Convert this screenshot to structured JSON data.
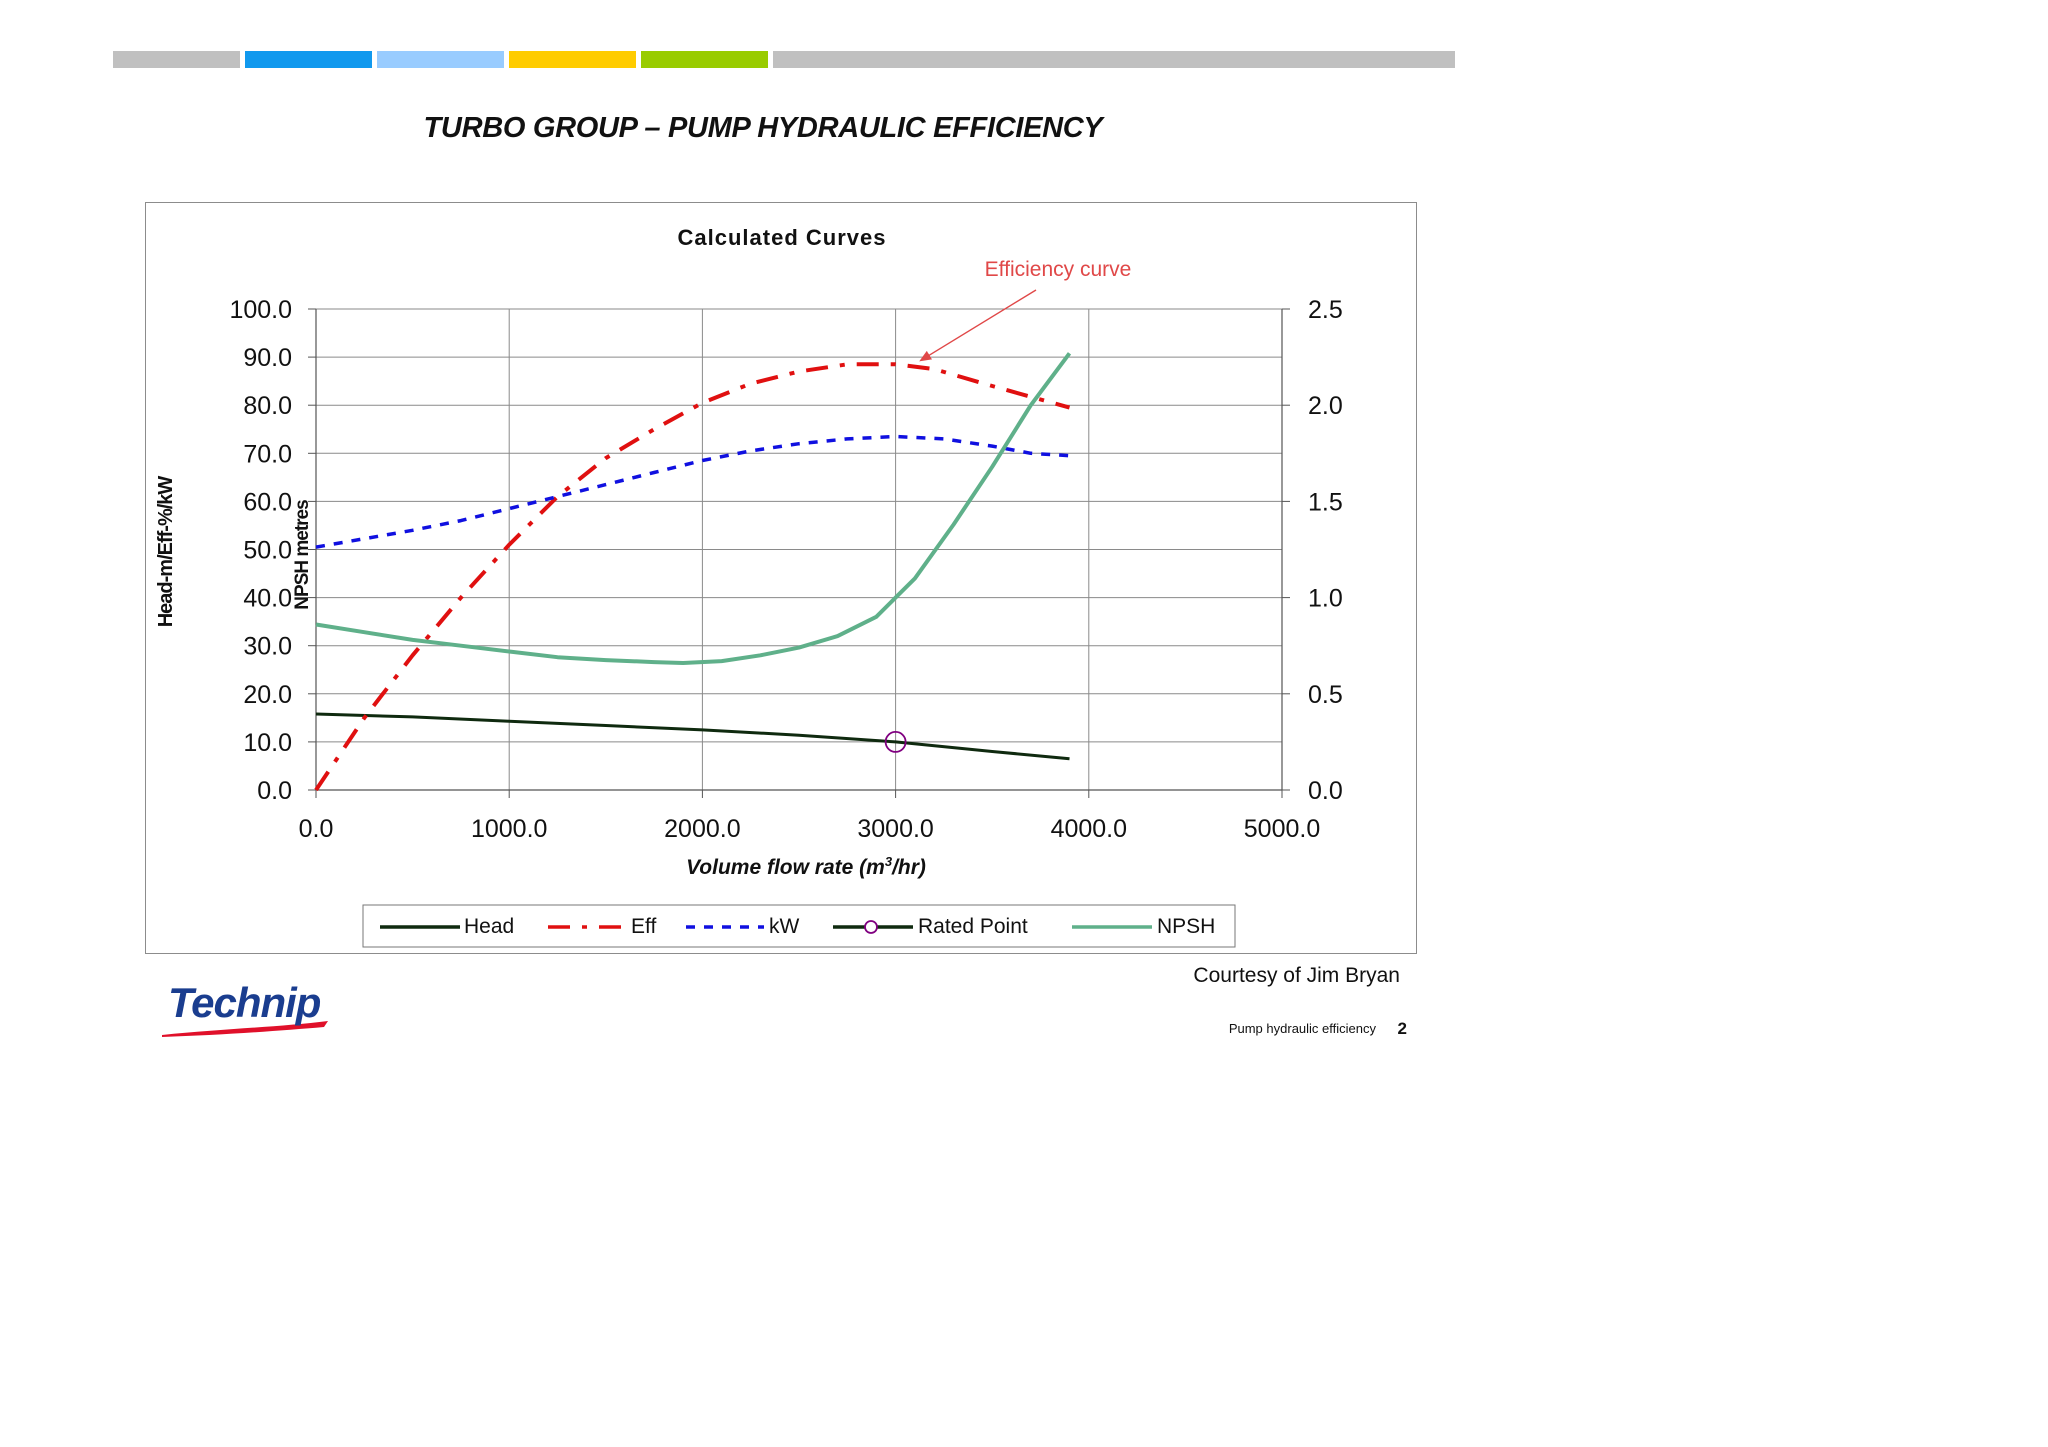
{
  "header": {
    "bars": [
      {
        "color": "#c0c0c0"
      },
      {
        "color": "#1199ee"
      },
      {
        "color": "#99ccff"
      },
      {
        "color": "#ffcc00"
      },
      {
        "color": "#99cc00"
      },
      {
        "color": "#c0c0c0"
      }
    ]
  },
  "slide": {
    "title": "TURBO GROUP – PUMP HYDRAULIC EFFICIENCY",
    "courtesy": "Courtesy of Jim Bryan",
    "footer_caption": "Pump hydraulic efficiency",
    "page_number": "2",
    "logo_text": "Technip",
    "logo_colors": {
      "text": "#1a3d8f",
      "swoosh": "#e0102a"
    }
  },
  "chart_data": {
    "type": "line",
    "title": "Calculated Curves",
    "xlabel": "Volume flow rate (m3/hr)",
    "xlabel_parts": [
      "Volume flow rate (m",
      "3",
      "/hr)"
    ],
    "ylabel": "Head-m/Eff-%/kW",
    "y2label": "NPSH metres",
    "xlim": [
      0,
      5000
    ],
    "ylim": [
      0,
      100
    ],
    "y2lim": [
      0,
      2.5
    ],
    "x_ticks": [
      "0.0",
      "1000.0",
      "2000.0",
      "3000.0",
      "4000.0",
      "5000.0"
    ],
    "x_tick_values": [
      0,
      1000,
      2000,
      3000,
      4000,
      5000
    ],
    "y_ticks": [
      "0.0",
      "10.0",
      "20.0",
      "30.0",
      "40.0",
      "50.0",
      "60.0",
      "70.0",
      "80.0",
      "90.0",
      "100.0"
    ],
    "y_tick_values": [
      0,
      10,
      20,
      30,
      40,
      50,
      60,
      70,
      80,
      90,
      100
    ],
    "y2_ticks": [
      "0.0",
      "0.5",
      "1.0",
      "1.5",
      "2.0",
      "2.5"
    ],
    "y2_tick_values": [
      0,
      0.5,
      1.0,
      1.5,
      2.0,
      2.5
    ],
    "grid": true,
    "legend_position": "bottom",
    "series": [
      {
        "name": "Head",
        "axis": "left",
        "color": "#0f2a0f",
        "style": "solid",
        "x": [
          0,
          500,
          1000,
          1500,
          2000,
          2500,
          3000,
          3500,
          3900
        ],
        "y": [
          15.8,
          15.2,
          14.3,
          13.4,
          12.5,
          11.4,
          10.0,
          8.0,
          6.5
        ]
      },
      {
        "name": "Eff",
        "axis": "left",
        "color": "#e01010",
        "style": "dashdot",
        "x": [
          0,
          250,
          500,
          750,
          1000,
          1250,
          1500,
          1750,
          2000,
          2250,
          2500,
          2750,
          3000,
          3200,
          3500,
          3900
        ],
        "y": [
          0,
          15,
          28,
          40,
          51,
          61,
          69,
          75,
          80.5,
          84.5,
          87,
          88.5,
          88.5,
          87.5,
          84,
          79.5
        ]
      },
      {
        "name": "kW",
        "axis": "left",
        "color": "#1010e0",
        "style": "dotted",
        "x": [
          0,
          500,
          750,
          1000,
          1250,
          1500,
          1750,
          2000,
          2250,
          2500,
          2750,
          3000,
          3250,
          3500,
          3700,
          3900
        ],
        "y": [
          50.5,
          54,
          56,
          58.5,
          61,
          63.5,
          66,
          68.5,
          70.5,
          72,
          73,
          73.5,
          73,
          71.5,
          70,
          69.5
        ]
      },
      {
        "name": "NPSH",
        "axis": "right",
        "color": "#5fb08a",
        "style": "solid",
        "x": [
          0,
          250,
          500,
          750,
          1000,
          1250,
          1500,
          1750,
          1900,
          2100,
          2300,
          2500,
          2700,
          2900,
          3000,
          3100,
          3300,
          3500,
          3700,
          3900
        ],
        "y": [
          0.86,
          0.82,
          0.78,
          0.75,
          0.72,
          0.69,
          0.675,
          0.665,
          0.66,
          0.67,
          0.7,
          0.74,
          0.8,
          0.9,
          1.0,
          1.1,
          1.38,
          1.68,
          2.0,
          2.27
        ]
      }
    ],
    "rated_point": {
      "name": "Rated Point",
      "x": 3000,
      "y": 10.0,
      "color": "#800080"
    },
    "annotation": {
      "text": "Efficiency curve",
      "color": "#e04848",
      "points_to_x": 3100,
      "points_to_y": 88.5
    },
    "legend": [
      "Head",
      "Eff",
      "kW",
      "Rated Point",
      "NPSH"
    ]
  }
}
